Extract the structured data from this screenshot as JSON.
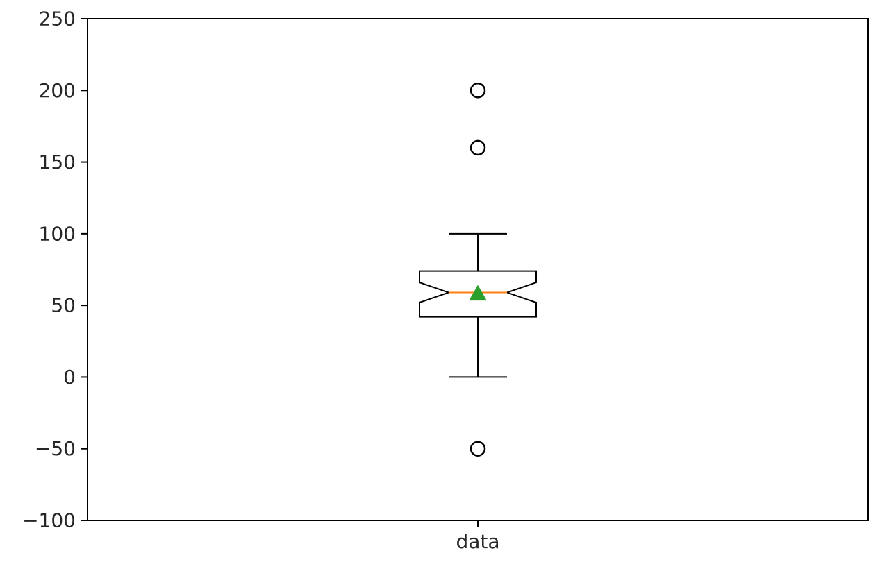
{
  "chart_data": {
    "type": "boxplot",
    "title": "",
    "xlabel": "",
    "ylabel": "",
    "ylim": [
      -100,
      250
    ],
    "yticks": [
      -100,
      -50,
      0,
      50,
      100,
      150,
      200,
      250
    ],
    "ytick_labels": [
      "−100",
      "−50",
      "0",
      "50",
      "100",
      "150",
      "200",
      "250"
    ],
    "categories": [
      "data"
    ],
    "boxes": [
      {
        "category": "data",
        "notched": true,
        "show_mean": true,
        "whisker_low": 0,
        "q1": 42,
        "median": 59,
        "q3": 74,
        "whisker_high": 100,
        "notch_low": 52,
        "notch_high": 66,
        "mean": 58,
        "outliers": [
          200,
          160,
          -50
        ]
      }
    ],
    "grid": false,
    "legend": "none",
    "colors": {
      "box": "#000000",
      "median": "#ff7f0e",
      "mean_marker": "#2ca02c",
      "text": "#262626"
    }
  }
}
